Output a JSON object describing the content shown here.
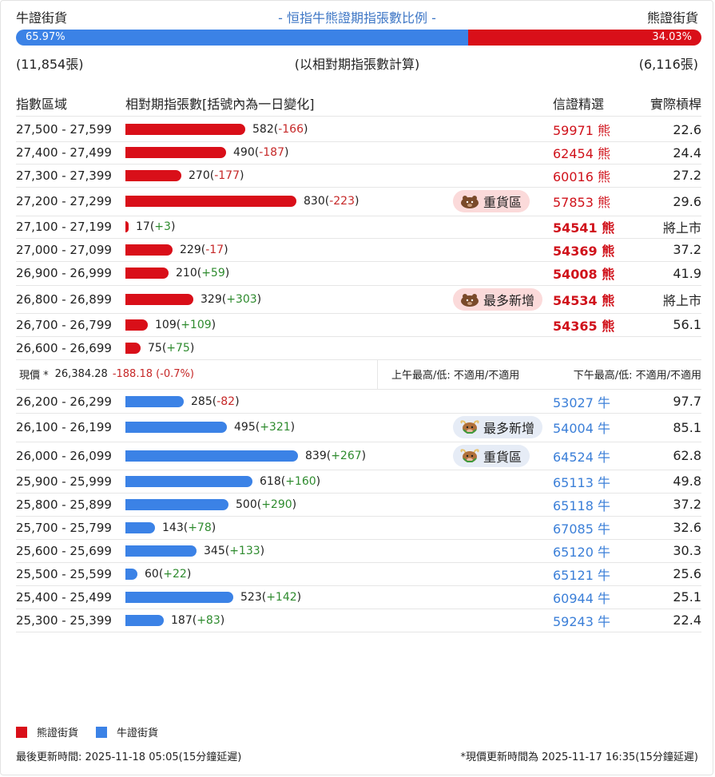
{
  "title": "- 恒指牛熊證期指張數比例 -",
  "bull_label": "牛證街貨",
  "bear_label": "熊證街貨",
  "bull_pct": "65.97%",
  "bear_pct": "34.03%",
  "bull_fraction": 0.6597,
  "bull_count": "(11,854張)",
  "bear_count": "(6,116張)",
  "count_note": "(以相對期指張數計算)",
  "colors": {
    "bear": "#d90f19",
    "bull": "#3b82e6"
  },
  "headers": {
    "range": "指數區域",
    "qty": "相對期指張數[括號內為一日變化]",
    "pick": "信證精選",
    "leverage": "實際槓桿"
  },
  "max_qty": 839,
  "bear_rows": [
    {
      "range": "27,500 - 27,599",
      "qty": 582,
      "qty_text": "582",
      "chg": "-166",
      "chg_sign": "neg",
      "code": "59971 熊",
      "code_bold": false,
      "lev": "22.6",
      "badge": ""
    },
    {
      "range": "27,400 - 27,499",
      "qty": 490,
      "qty_text": "490",
      "chg": "-187",
      "chg_sign": "neg",
      "code": "62454 熊",
      "code_bold": false,
      "lev": "24.4",
      "badge": ""
    },
    {
      "range": "27,300 - 27,399",
      "qty": 270,
      "qty_text": "270",
      "chg": "-177",
      "chg_sign": "neg",
      "code": "60016 熊",
      "code_bold": false,
      "lev": "27.2",
      "badge": ""
    },
    {
      "range": "27,200 - 27,299",
      "qty": 830,
      "qty_text": "830",
      "chg": "-223",
      "chg_sign": "neg",
      "code": "57853 熊",
      "code_bold": false,
      "lev": "29.6",
      "badge": "重貨區"
    },
    {
      "range": "27,100 - 27,199",
      "qty": 17,
      "qty_text": "17",
      "chg": "+3",
      "chg_sign": "pos",
      "code": "54541 熊",
      "code_bold": true,
      "lev": "將上市",
      "badge": ""
    },
    {
      "range": "27,000 - 27,099",
      "qty": 229,
      "qty_text": "229",
      "chg": "-17",
      "chg_sign": "neg",
      "code": "54369 熊",
      "code_bold": true,
      "lev": "37.2",
      "badge": ""
    },
    {
      "range": "26,900 - 26,999",
      "qty": 210,
      "qty_text": "210",
      "chg": "+59",
      "chg_sign": "pos",
      "code": "54008 熊",
      "code_bold": true,
      "lev": "41.9",
      "badge": ""
    },
    {
      "range": "26,800 - 26,899",
      "qty": 329,
      "qty_text": "329",
      "chg": "+303",
      "chg_sign": "pos",
      "code": "54534 熊",
      "code_bold": true,
      "lev": "將上市",
      "badge": "最多新增"
    },
    {
      "range": "26,700 - 26,799",
      "qty": 109,
      "qty_text": "109",
      "chg": "+109",
      "chg_sign": "pos",
      "code": "54365 熊",
      "code_bold": true,
      "lev": "56.1",
      "badge": ""
    },
    {
      "range": "26,600 - 26,699",
      "qty": 75,
      "qty_text": "75",
      "chg": "+75",
      "chg_sign": "pos",
      "code": "",
      "code_bold": false,
      "lev": "",
      "badge": ""
    }
  ],
  "price": {
    "label": "現價 *",
    "value": "26,384.28",
    "change": "-188.18 (-0.7%)",
    "am": "上午最高/低: 不適用/不適用",
    "pm": "下午最高/低: 不適用/不適用"
  },
  "bull_rows": [
    {
      "range": "26,200 - 26,299",
      "qty": 285,
      "qty_text": "285",
      "chg": "-82",
      "chg_sign": "neg",
      "code": "53027 牛",
      "code_bold": false,
      "lev": "97.7",
      "badge": ""
    },
    {
      "range": "26,100 - 26,199",
      "qty": 495,
      "qty_text": "495",
      "chg": "+321",
      "chg_sign": "pos",
      "code": "54004 牛",
      "code_bold": false,
      "lev": "85.1",
      "badge": "最多新增"
    },
    {
      "range": "26,000 - 26,099",
      "qty": 839,
      "qty_text": "839",
      "chg": "+267",
      "chg_sign": "pos",
      "code": "64524 牛",
      "code_bold": false,
      "lev": "62.8",
      "badge": "重貨區"
    },
    {
      "range": "25,900 - 25,999",
      "qty": 618,
      "qty_text": "618",
      "chg": "+160",
      "chg_sign": "pos",
      "code": "65113 牛",
      "code_bold": false,
      "lev": "49.8",
      "badge": ""
    },
    {
      "range": "25,800 - 25,899",
      "qty": 500,
      "qty_text": "500",
      "chg": "+290",
      "chg_sign": "pos",
      "code": "65118 牛",
      "code_bold": false,
      "lev": "37.2",
      "badge": ""
    },
    {
      "range": "25,700 - 25,799",
      "qty": 143,
      "qty_text": "143",
      "chg": "+78",
      "chg_sign": "pos",
      "code": "67085 牛",
      "code_bold": false,
      "lev": "32.6",
      "badge": ""
    },
    {
      "range": "25,600 - 25,699",
      "qty": 345,
      "qty_text": "345",
      "chg": "+133",
      "chg_sign": "pos",
      "code": "65120 牛",
      "code_bold": false,
      "lev": "30.3",
      "badge": ""
    },
    {
      "range": "25,500 - 25,599",
      "qty": 60,
      "qty_text": "60",
      "chg": "+22",
      "chg_sign": "pos",
      "code": "65121 牛",
      "code_bold": false,
      "lev": "25.6",
      "badge": ""
    },
    {
      "range": "25,400 - 25,499",
      "qty": 523,
      "qty_text": "523",
      "chg": "+142",
      "chg_sign": "pos",
      "code": "60944 牛",
      "code_bold": false,
      "lev": "25.1",
      "badge": ""
    },
    {
      "range": "25,300 - 25,399",
      "qty": 187,
      "qty_text": "187",
      "chg": "+83",
      "chg_sign": "pos",
      "code": "59243 牛",
      "code_bold": false,
      "lev": "22.4",
      "badge": ""
    }
  ],
  "legend": {
    "bear": "熊證街貨",
    "bull": "牛證街貨"
  },
  "footer": {
    "updated": "最後更新時間: 2025-11-18 05:05(15分鐘延遲)",
    "price_updated": "*現價更新時間為 2025-11-17 16:35(15分鐘延遲)"
  },
  "icons": {
    "bear_badge": "bear-icon",
    "bull_badge": "bull-icon"
  }
}
